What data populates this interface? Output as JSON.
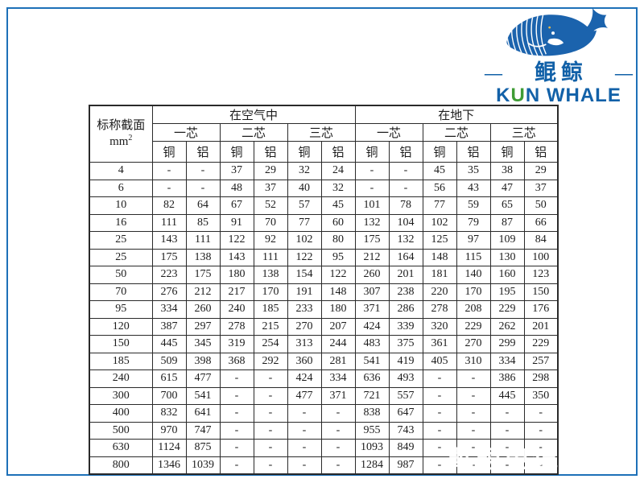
{
  "colors": {
    "brand_blue": "#1261a8",
    "brand_green": "#3f9c35",
    "border_blue": "#1d70b8",
    "grid_line": "#2a2a2a"
  },
  "logo": {
    "dash_left": "—",
    "dash_right": "—",
    "cn_name": "鲲鲸",
    "en_k": "K",
    "en_u": "U",
    "en_rest": "N WHALE"
  },
  "watermark": {
    "text": "鲲鲸电缆"
  },
  "table": {
    "corner_header": "标称截面",
    "corner_unit_base": "mm",
    "corner_unit_exp": "2",
    "group_headers": [
      "在空气中",
      "在地下"
    ],
    "core_headers": [
      "一芯",
      "二芯",
      "三芯"
    ],
    "material_headers": [
      "铜",
      "铝"
    ],
    "rows": [
      {
        "size": "4",
        "values": [
          "-",
          "-",
          "37",
          "29",
          "32",
          "24",
          "-",
          "-",
          "45",
          "35",
          "38",
          "29"
        ]
      },
      {
        "size": "6",
        "values": [
          "-",
          "-",
          "48",
          "37",
          "40",
          "32",
          "-",
          "-",
          "56",
          "43",
          "47",
          "37"
        ]
      },
      {
        "size": "10",
        "values": [
          "82",
          "64",
          "67",
          "52",
          "57",
          "45",
          "101",
          "78",
          "77",
          "59",
          "65",
          "50"
        ]
      },
      {
        "size": "16",
        "values": [
          "111",
          "85",
          "91",
          "70",
          "77",
          "60",
          "132",
          "104",
          "102",
          "79",
          "87",
          "66"
        ]
      },
      {
        "size": "25",
        "values": [
          "143",
          "111",
          "122",
          "92",
          "102",
          "80",
          "175",
          "132",
          "125",
          "97",
          "109",
          "84"
        ]
      },
      {
        "size": "25",
        "values": [
          "175",
          "138",
          "143",
          "111",
          "122",
          "95",
          "212",
          "164",
          "148",
          "115",
          "130",
          "100"
        ]
      },
      {
        "size": "50",
        "values": [
          "223",
          "175",
          "180",
          "138",
          "154",
          "122",
          "260",
          "201",
          "181",
          "140",
          "160",
          "123"
        ]
      },
      {
        "size": "70",
        "values": [
          "276",
          "212",
          "217",
          "170",
          "191",
          "148",
          "307",
          "238",
          "220",
          "170",
          "195",
          "150"
        ]
      },
      {
        "size": "95",
        "values": [
          "334",
          "260",
          "240",
          "185",
          "233",
          "180",
          "371",
          "286",
          "278",
          "208",
          "229",
          "176"
        ]
      },
      {
        "size": "120",
        "values": [
          "387",
          "297",
          "278",
          "215",
          "270",
          "207",
          "424",
          "339",
          "320",
          "229",
          "262",
          "201"
        ]
      },
      {
        "size": "150",
        "values": [
          "445",
          "345",
          "319",
          "254",
          "313",
          "244",
          "483",
          "375",
          "361",
          "270",
          "299",
          "229"
        ]
      },
      {
        "size": "185",
        "values": [
          "509",
          "398",
          "368",
          "292",
          "360",
          "281",
          "541",
          "419",
          "405",
          "310",
          "334",
          "257"
        ]
      },
      {
        "size": "240",
        "values": [
          "615",
          "477",
          "-",
          "-",
          "424",
          "334",
          "636",
          "493",
          "-",
          "-",
          "386",
          "298"
        ]
      },
      {
        "size": "300",
        "values": [
          "700",
          "541",
          "-",
          "-",
          "477",
          "371",
          "721",
          "557",
          "-",
          "-",
          "445",
          "350"
        ]
      },
      {
        "size": "400",
        "values": [
          "832",
          "641",
          "-",
          "-",
          "-",
          "-",
          "838",
          "647",
          "-",
          "-",
          "-",
          "-"
        ]
      },
      {
        "size": "500",
        "values": [
          "970",
          "747",
          "-",
          "-",
          "-",
          "-",
          "955",
          "743",
          "-",
          "-",
          "-",
          "-"
        ]
      },
      {
        "size": "630",
        "values": [
          "1124",
          "875",
          "-",
          "-",
          "-",
          "-",
          "1093",
          "849",
          "-",
          "-",
          "-",
          "-"
        ]
      },
      {
        "size": "800",
        "values": [
          "1346",
          "1039",
          "-",
          "-",
          "-",
          "-",
          "1284",
          "987",
          "-",
          "-",
          "-",
          "-"
        ]
      }
    ]
  }
}
